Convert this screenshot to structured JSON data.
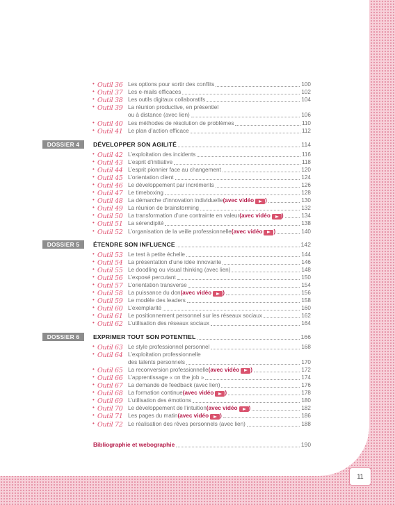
{
  "sections": [
    {
      "label": "",
      "title": "",
      "page": "",
      "entries": [
        {
          "outil": "Outil 36",
          "title": "Les options pour sortir des conflits",
          "page": "100"
        },
        {
          "outil": "Outil 37",
          "title": "Les e-mails efficaces",
          "page": "102"
        },
        {
          "outil": "Outil 38",
          "title": "Les outils digitaux collaboratifs",
          "page": "104"
        },
        {
          "outil": "Outil 39",
          "title": "La réunion productive, en présentiel",
          "page": ""
        },
        {
          "outil": "",
          "title": "ou à distance (avec lien)",
          "page": "106"
        },
        {
          "outil": "Outil 40",
          "title": "Les méthodes de résolution de problèmes",
          "page": "110"
        },
        {
          "outil": "Outil 41",
          "title": "Le plan d’action efficace",
          "page": "112"
        }
      ]
    },
    {
      "label": "DOSSIER 4",
      "title": "DÉVELOPPER SON AGILITÉ",
      "page": "114",
      "entries": [
        {
          "outil": "Outil 42",
          "title": "L’exploitation des incidents",
          "page": "116"
        },
        {
          "outil": "Outil 43",
          "title": "L’esprit d’initiative",
          "page": "118"
        },
        {
          "outil": "Outil 44",
          "title": "L’esprit pionnier face au changement",
          "page": "120"
        },
        {
          "outil": "Outil 45",
          "title": "L’orientation client",
          "page": "124"
        },
        {
          "outil": "Outil 46",
          "title": "Le développement par incréments",
          "page": "126"
        },
        {
          "outil": "Outil 47",
          "title": "Le timeboxing",
          "page": "128"
        },
        {
          "outil": "Outil 48",
          "title": "La démarche d’innovation individuelle",
          "video": "(avec vidéo",
          "page": "130"
        },
        {
          "outil": "Outil 49",
          "title": "La réunion de brainstorming",
          "page": "132"
        },
        {
          "outil": "Outil 50",
          "title": "La transformation d’une contrainte en valeur",
          "video": "(avec vidéo",
          "page": "134"
        },
        {
          "outil": "Outil 51",
          "title": "La sérendipité",
          "page": "138"
        },
        {
          "outil": "Outil 52",
          "title": "L’organisation de la veille professionnelle",
          "video": "(avec vidéo",
          "page": "140"
        }
      ]
    },
    {
      "label": "DOSSIER 5",
      "title": "ÉTENDRE SON INFLUENCE",
      "page": "142",
      "entries": [
        {
          "outil": "Outil 53",
          "title": "Le test à petite échelle",
          "page": "144"
        },
        {
          "outil": "Outil 54",
          "title": "La présentation d’une idée innovante",
          "page": "146"
        },
        {
          "outil": "Outil 55",
          "title": "Le doodling ou visual thinking (avec lien)",
          "page": "148"
        },
        {
          "outil": "Outil 56",
          "title": "L’exposé percutant",
          "page": "150"
        },
        {
          "outil": "Outil 57",
          "title": "L’orientation transverse",
          "page": "154"
        },
        {
          "outil": "Outil 58",
          "title": "La puissance du don",
          "video": "(avec vidéo",
          "page": "156"
        },
        {
          "outil": "Outil 59",
          "title": "Le modèle des leaders",
          "page": "158"
        },
        {
          "outil": "Outil 60",
          "title": "L’exemplarité",
          "page": "160"
        },
        {
          "outil": "Outil 61",
          "title": "Le positionnement personnel sur les réseaux sociaux",
          "page": "162"
        },
        {
          "outil": "Outil 62",
          "title": "L’utilisation des réseaux sociaux",
          "page": "164"
        }
      ]
    },
    {
      "label": "DOSSIER 6",
      "title": "EXPRIMER TOUT SON POTENTIEL",
      "page": "166",
      "entries": [
        {
          "outil": "Outil 63",
          "title": "Le style professionnel personnel",
          "page": "168"
        },
        {
          "outil": "Outil 64",
          "title": "L’exploitation professionnelle",
          "page": ""
        },
        {
          "outil": "",
          "title": "des talents personnels",
          "page": "170"
        },
        {
          "outil": "Outil 65",
          "title": "La reconversion professionnelle",
          "video": "(avec vidéo",
          "page": "172"
        },
        {
          "outil": "Outil 66",
          "title": "L’apprentissage « on the job »",
          "page": "174"
        },
        {
          "outil": "Outil 67",
          "title": "La demande de feedback (avec lien)",
          "page": "176"
        },
        {
          "outil": "Outil 68",
          "title": "La formation continue",
          "video": "(avec vidéo",
          "page": "178"
        },
        {
          "outil": "Outil 69",
          "title": "L’utilisation des émotions",
          "page": "180"
        },
        {
          "outil": "Outil 70",
          "title": "Le développement de l’intuition",
          "video": "(avec vidéo",
          "page": "182"
        },
        {
          "outil": "Outil 71",
          "title": "Les pages du matin",
          "video": "(avec vidéo",
          "page": "186"
        },
        {
          "outil": "Outil 72",
          "title": "Le réalisation des rêves personnels (avec lien)",
          "page": "188"
        }
      ]
    }
  ],
  "bibliography": {
    "title": "Bibliographie et webographie",
    "page": "190"
  },
  "page_number": "11"
}
